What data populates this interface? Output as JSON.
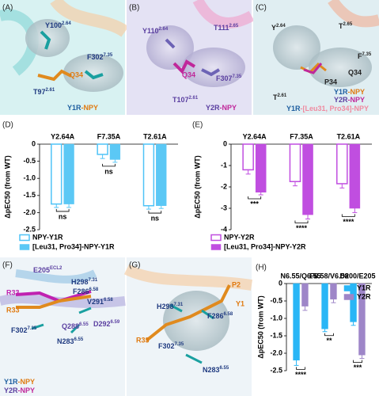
{
  "panels": [
    {
      "label": "(A)",
      "labels": [
        {
          "text": "Y100",
          "sup": "2.64"
        },
        {
          "text": "F302",
          "sup": "7.35"
        },
        {
          "text": "Q34"
        },
        {
          "text": "T97",
          "sup": "2.61"
        }
      ],
      "legend": [
        [
          "Y1R",
          "-NPY"
        ]
      ]
    },
    {
      "label": "(B)",
      "labels": [
        {
          "text": "Y110",
          "sup": "2.64"
        },
        {
          "text": "T111",
          "sup": "2.65"
        },
        {
          "text": "Q34"
        },
        {
          "text": "F307",
          "sup": "7.35"
        },
        {
          "text": "T107",
          "sup": "2.61"
        }
      ],
      "legend": [
        [
          "Y2R",
          "-NPY"
        ]
      ]
    },
    {
      "label": "(C)",
      "labels": [
        {
          "text": "Y",
          "sup": "2.64"
        },
        {
          "text": "T",
          "sup": "2.65"
        },
        {
          "text": "Q34"
        },
        {
          "text": "F",
          "sup": "7.35"
        },
        {
          "text": "P34"
        },
        {
          "text": "T",
          "sup": "2.61"
        }
      ],
      "legend": [
        [
          "Y1R",
          "-NPY"
        ],
        [
          "Y2R",
          "-NPY"
        ],
        [
          "Y1R",
          "-[Leu31, Pro34]-NPY"
        ]
      ]
    },
    {
      "label": "(F)",
      "labels": [
        {
          "text": "E205",
          "sup": "ECL2"
        },
        {
          "text": "H298",
          "sup": "7.31"
        },
        {
          "text": "F286",
          "sup": "6.58"
        },
        {
          "text": "R33"
        },
        {
          "text": "V291",
          "sup": "6.58"
        },
        {
          "text": "R33"
        },
        {
          "text": "Q288",
          "sup": "6.55"
        },
        {
          "text": "D292",
          "sup": "6.59"
        },
        {
          "text": "F302",
          "sup": "7.35"
        },
        {
          "text": "N283",
          "sup": "6.55"
        }
      ],
      "legend": [
        [
          "Y1R",
          "-NPY"
        ],
        [
          "Y2R",
          "-NPY"
        ]
      ]
    },
    {
      "label": "(G)",
      "labels": [
        {
          "text": "P2"
        },
        {
          "text": "Y1"
        },
        {
          "text": "H298",
          "sup": "7.31"
        },
        {
          "text": "F286",
          "sup": "6.58"
        },
        {
          "text": "R33"
        },
        {
          "text": "F302",
          "sup": "7.35"
        },
        {
          "text": "N283",
          "sup": "6.55"
        }
      ],
      "legend": []
    }
  ],
  "chart_data": [
    {
      "type": "bar",
      "panel": "(D)",
      "ylabel": "ΔpEC50 (from WT)",
      "categories": [
        "Y2.64A",
        "F7.35A",
        "T2.61A"
      ],
      "series": [
        {
          "name": "NPY-Y1R",
          "color": "#4fc3f7",
          "style": "outline",
          "values": [
            -1.75,
            -0.3,
            -1.8
          ],
          "errors": [
            0.1,
            0.12,
            0.1
          ]
        },
        {
          "name": "[Leu31, Pro34]-NPY-Y1R",
          "color": "#5bc8f5",
          "style": "filled",
          "values": [
            -1.75,
            -0.45,
            -1.8
          ],
          "errors": [
            0.1,
            0.08,
            0.08
          ]
        }
      ],
      "ylim": [
        0,
        -2.5
      ],
      "yticks": [
        0,
        -0.5,
        {
          "value": -1,
          "label": "-1.0"
        },
        -1.5,
        {
          "value": -2,
          "label": "-2.0"
        },
        -2.5
      ],
      "annotations": [
        "ns",
        "ns",
        "ns"
      ],
      "legend": "bottom"
    },
    {
      "type": "bar",
      "panel": "(E)",
      "ylabel": "ΔpEC50 (from WT)",
      "categories": [
        "Y2.64A",
        "F7.35A",
        "T2.61A"
      ],
      "series": [
        {
          "name": "NPY-Y2R",
          "color": "#c04ee0",
          "style": "outline",
          "values": [
            -1.2,
            -1.75,
            -1.85
          ],
          "errors": [
            0.2,
            0.2,
            0.2
          ]
        },
        {
          "name": "[Leu31, Pro34]-NPY-Y2R",
          "color": "#c04ee0",
          "style": "filled",
          "values": [
            -2.25,
            -3.3,
            -3.0
          ],
          "errors": [
            0.12,
            0.2,
            0.2
          ]
        }
      ],
      "ylim": [
        0,
        -4
      ],
      "yticks": [
        0,
        -1,
        -2,
        -3,
        -4
      ],
      "annotations": [
        "***",
        "****",
        "****"
      ],
      "legend": "bottom"
    },
    {
      "type": "bar",
      "panel": "(H)",
      "ylabel": "ΔpEC50 (from WT)",
      "categories": [
        "N6.55/Q6.55",
        "F6.58/V6.58",
        "D200/E205"
      ],
      "series": [
        {
          "name": "Y1R",
          "color": "#29b6f6",
          "style": "filled",
          "values": [
            -2.2,
            -1.3,
            -1.1
          ],
          "errors": [
            0.15,
            0.08,
            0.1
          ]
        },
        {
          "name": "Y2R",
          "color": "#9e86c8",
          "style": "filled",
          "values": [
            -0.65,
            -0.45,
            -2.05
          ],
          "errors": [
            0.12,
            0.1,
            0.1
          ]
        }
      ],
      "ylim": [
        0,
        -2.5
      ],
      "yticks": [
        0,
        -0.5,
        {
          "value": -1,
          "label": "-1.0"
        },
        -1.5,
        {
          "value": -2,
          "label": "-2.0"
        },
        -2.5
      ],
      "annotations": [
        "****",
        "**",
        "***"
      ],
      "legend": "top-right"
    }
  ]
}
